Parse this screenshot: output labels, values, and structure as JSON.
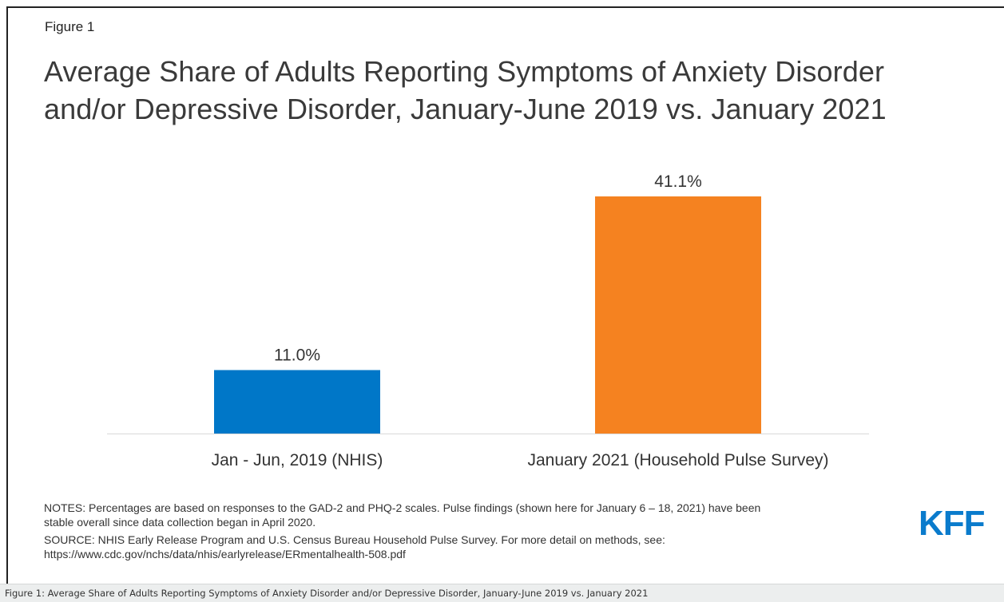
{
  "figure_label": "Figure 1",
  "title_line1": "Average Share of Adults Reporting Symptoms of Anxiety Disorder",
  "title_line2": "and/or Depressive Disorder, January-June 2019 vs. January 2021",
  "chart_data": {
    "type": "bar",
    "categories": [
      "Jan - Jun, 2019 (NHIS)",
      "January 2021 (Household Pulse Survey)"
    ],
    "values": [
      11.0,
      41.1
    ],
    "data_labels": [
      "11.0%",
      "41.1%"
    ],
    "colors": [
      "#0077c8",
      "#f58220"
    ],
    "ylim": [
      0,
      45
    ],
    "grid": false,
    "legend": "none"
  },
  "notes": {
    "notes_line1": "NOTES: Percentages are based on responses to the GAD-2 and PHQ-2 scales. Pulse findings (shown here for January 6 – 18, 2021) have been",
    "notes_line2": "stable overall since data collection began in April 2020.",
    "source_line1": "SOURCE: NHIS Early Release Program and U.S. Census Bureau Household Pulse Survey. For more detail on methods, see:",
    "source_line2": "https://www.cdc.gov/nchs/data/nhis/earlyrelease/ERmentalhealth-508.pdf"
  },
  "logo_text": "KFF",
  "caption": "Figure 1: Average Share of Adults Reporting Symptoms of Anxiety Disorder and/or Depressive Disorder, January-June 2019 vs. January 2021"
}
